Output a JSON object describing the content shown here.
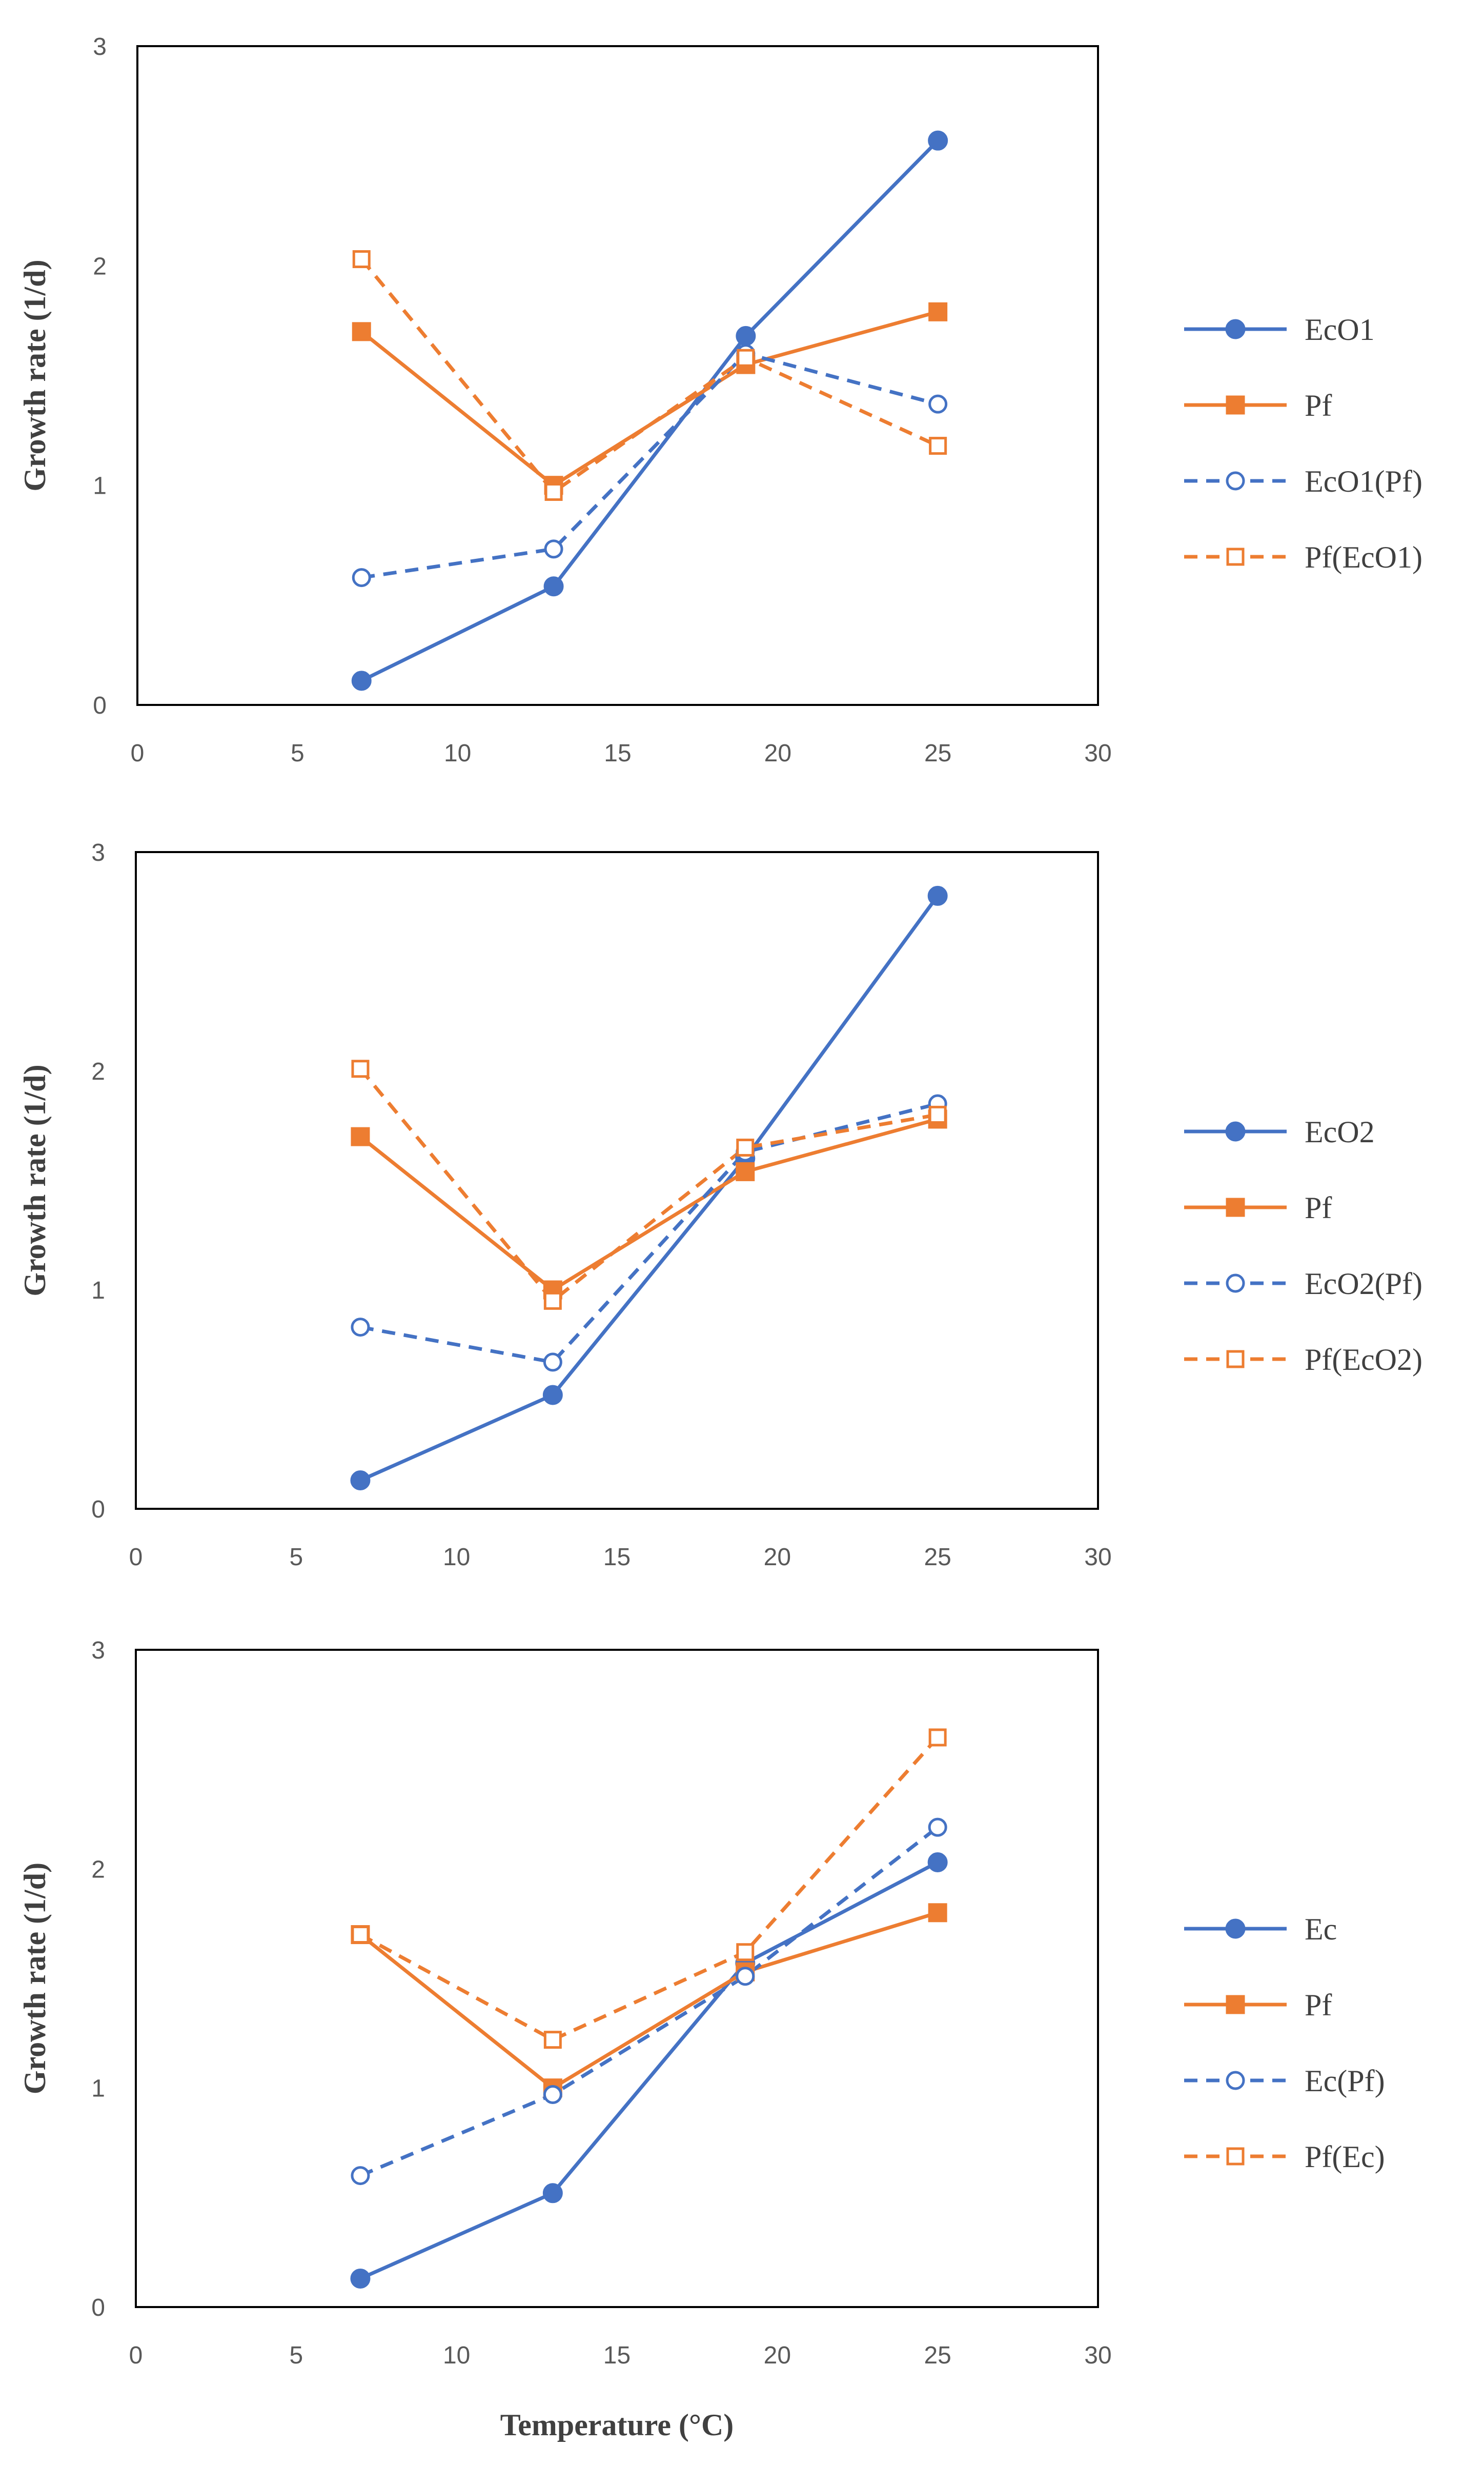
{
  "colors": {
    "blue": "#4472C4",
    "orange": "#ED7D31",
    "axis": "#000000",
    "text": "#595959"
  },
  "chart_data": [
    {
      "type": "line",
      "title": "",
      "xlabel": "Temperature (°C)",
      "ylabel": "Growth rate (1/d)",
      "xlim": [
        0,
        30
      ],
      "ylim": [
        0,
        3
      ],
      "xticks": [
        "0",
        "5",
        "10",
        "15",
        "20",
        "25",
        "30"
      ],
      "yticks": [
        "0",
        "1",
        "2",
        "3"
      ],
      "legend_position": "right",
      "series": [
        {
          "name": "EcO1",
          "color": "#4472C4",
          "marker": "circle-filled",
          "dash": false,
          "x": [
            7,
            13,
            19,
            25
          ],
          "y": [
            0.11,
            0.54,
            1.68,
            2.57
          ]
        },
        {
          "name": "Pf",
          "color": "#ED7D31",
          "marker": "square-filled",
          "dash": false,
          "x": [
            7,
            13,
            19,
            25
          ],
          "y": [
            1.7,
            1.0,
            1.55,
            1.79
          ]
        },
        {
          "name": "EcO1(Pf)",
          "color": "#4472C4",
          "marker": "circle-open",
          "dash": true,
          "x": [
            7,
            13,
            19,
            25
          ],
          "y": [
            0.58,
            0.71,
            1.6,
            1.37
          ]
        },
        {
          "name": "Pf(EcO1)",
          "color": "#ED7D31",
          "marker": "square-open",
          "dash": true,
          "x": [
            7,
            13,
            19,
            25
          ],
          "y": [
            2.03,
            0.97,
            1.58,
            1.18
          ]
        }
      ]
    },
    {
      "type": "line",
      "title": "",
      "xlabel": "Temperature (°C)",
      "ylabel": "Growth rate (1/d)",
      "xlim": [
        0,
        30
      ],
      "ylim": [
        0,
        3
      ],
      "xticks": [
        "0",
        "5",
        "10",
        "15",
        "20",
        "25",
        "30"
      ],
      "yticks": [
        "0",
        "1",
        "2",
        "3"
      ],
      "legend_position": "right",
      "series": [
        {
          "name": "EcO2",
          "color": "#4472C4",
          "marker": "circle-filled",
          "dash": false,
          "x": [
            7,
            13,
            19,
            25
          ],
          "y": [
            0.13,
            0.52,
            1.6,
            2.8
          ]
        },
        {
          "name": "Pf",
          "color": "#ED7D31",
          "marker": "square-filled",
          "dash": false,
          "x": [
            7,
            13,
            19,
            25
          ],
          "y": [
            1.7,
            1.0,
            1.54,
            1.78
          ]
        },
        {
          "name": "EcO2(Pf)",
          "color": "#4472C4",
          "marker": "circle-open",
          "dash": true,
          "x": [
            7,
            13,
            19,
            25
          ],
          "y": [
            0.83,
            0.67,
            1.63,
            1.85
          ]
        },
        {
          "name": "Pf(EcO2)",
          "color": "#ED7D31",
          "marker": "square-open",
          "dash": true,
          "x": [
            7,
            13,
            19,
            25
          ],
          "y": [
            2.01,
            0.95,
            1.65,
            1.8
          ]
        }
      ]
    },
    {
      "type": "line",
      "title": "",
      "xlabel": "Temperature (°C)",
      "ylabel": "Growth rate (1/d)",
      "xlim": [
        0,
        30
      ],
      "ylim": [
        0,
        3
      ],
      "xticks": [
        "0",
        "5",
        "10",
        "15",
        "20",
        "25",
        "30"
      ],
      "yticks": [
        "0",
        "1",
        "2",
        "3"
      ],
      "legend_position": "right",
      "series": [
        {
          "name": "Ec",
          "color": "#4472C4",
          "marker": "circle-filled",
          "dash": false,
          "x": [
            7,
            13,
            19,
            25
          ],
          "y": [
            0.13,
            0.52,
            1.57,
            2.03
          ]
        },
        {
          "name": "Pf",
          "color": "#ED7D31",
          "marker": "square-filled",
          "dash": false,
          "x": [
            7,
            13,
            19,
            25
          ],
          "y": [
            1.7,
            1.0,
            1.53,
            1.8
          ]
        },
        {
          "name": "Ec(Pf)",
          "color": "#4472C4",
          "marker": "circle-open",
          "dash": true,
          "x": [
            7,
            13,
            19,
            25
          ],
          "y": [
            0.6,
            0.97,
            1.51,
            2.19
          ]
        },
        {
          "name": "Pf(Ec)",
          "color": "#ED7D31",
          "marker": "square-open",
          "dash": true,
          "x": [
            7,
            13,
            19,
            25
          ],
          "y": [
            1.7,
            1.22,
            1.62,
            2.6
          ]
        }
      ]
    }
  ]
}
